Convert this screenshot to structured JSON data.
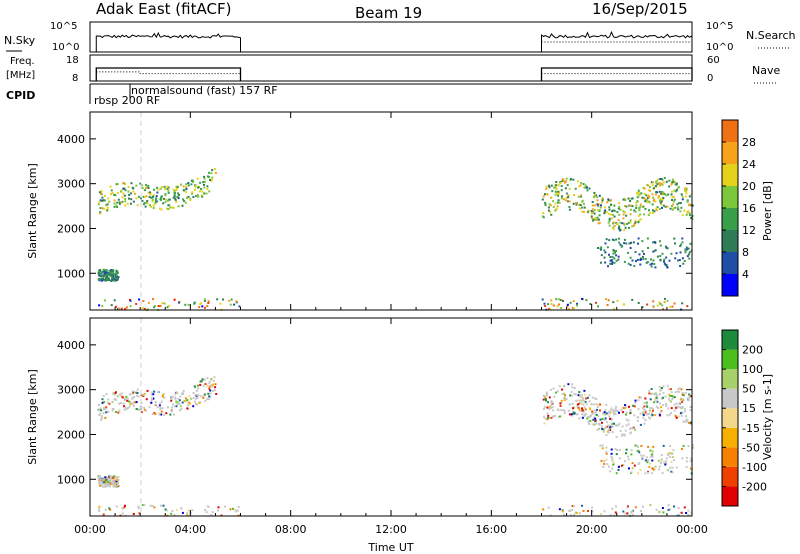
{
  "header": {
    "station": "Adak East (fitACF)",
    "beam": "Beam 19",
    "date": "16/Sep/2015"
  },
  "colors": {
    "power": [
      "#0000ff",
      "#1f4ea6",
      "#2e7d57",
      "#3a9f4b",
      "#7bc83c",
      "#e6d21a",
      "#f6a21a",
      "#f07014",
      "#e83a10",
      "#ff0000"
    ],
    "velocity": [
      "#e00000",
      "#f04000",
      "#f68000",
      "#f7b000",
      "#f3d78a",
      "#c8c8c8",
      "#a7d26a",
      "#4cbf1f",
      "#1e8a3c",
      "#1c5fa0",
      "#0000cc"
    ],
    "ground_scatter": "#c8c8c8"
  },
  "chart_data": [
    {
      "type": "line",
      "panel": "noise",
      "labels": {
        "left": "N.Sky",
        "right": "N.Search"
      },
      "left_ticks": [
        "10^5",
        "10^0"
      ],
      "right_ticks": [
        "10^5",
        "10^0"
      ],
      "gaps": [
        [
          6.0,
          18.0
        ]
      ],
      "series": [
        {
          "name": "N.Sky",
          "style": "solid",
          "segments": [
            [
              0.25,
              6.0
            ],
            [
              18.0,
              24.0
            ]
          ]
        },
        {
          "name": "N.Search",
          "style": "dotted",
          "segments": [
            [
              18.0,
              24.0
            ]
          ]
        }
      ]
    },
    {
      "type": "line",
      "panel": "frequency",
      "labels": {
        "left_top": "Freq.",
        "left_bottom": "[MHz]",
        "right": "Nave"
      },
      "left_ticks": [
        "18",
        "8"
      ],
      "right_ticks": [
        "60",
        "0"
      ],
      "ylim_left": [
        8,
        18
      ],
      "ylim_right": [
        0,
        60
      ],
      "series": [
        {
          "name": "Freq.",
          "style": "solid",
          "points": [
            [
              0.25,
              13.0
            ],
            [
              6.0,
              13.0
            ]
          ]
        },
        {
          "name": "Freq.",
          "style": "solid",
          "points": [
            [
              18.0,
              13.0
            ],
            [
              24.0,
              13.0
            ]
          ]
        },
        {
          "name": "Nave",
          "style": "dotted",
          "points": [
            [
              0.25,
              21
            ],
            [
              2.0,
              21
            ],
            [
              2.0,
              17
            ],
            [
              6.0,
              17
            ]
          ]
        },
        {
          "name": "Nave",
          "style": "dotted",
          "points": [
            [
              18.0,
              17
            ],
            [
              24.0,
              17
            ]
          ]
        }
      ]
    },
    {
      "type": "table",
      "panel": "cpid",
      "label": "CPID",
      "entries": [
        {
          "text": "rbsp 200 RF",
          "start": 0.25
        },
        {
          "text": "normalsound (fast) 157 RF",
          "start": 2.0
        }
      ]
    },
    {
      "type": "heatmap",
      "panel": "power",
      "ylabel": "Slant Range [km]",
      "yticks": [
        1000,
        2000,
        3000,
        4000
      ],
      "ylim": [
        180,
        4600
      ],
      "xlim": [
        0,
        24
      ],
      "colorbar": {
        "label": "Power [dB]",
        "ticks": [
          4,
          8,
          12,
          16,
          20,
          24,
          28
        ],
        "range": [
          0,
          32
        ]
      },
      "regions": [
        {
          "x": [
            0.3,
            5.0
          ],
          "y": [
            2100,
            3050
          ],
          "level": [
            6,
            20
          ]
        },
        {
          "x": [
            0.3,
            1.1
          ],
          "y": [
            850,
            1100
          ],
          "level": [
            5,
            12
          ]
        },
        {
          "x": [
            0.3,
            6.0
          ],
          "y": [
            200,
            450
          ],
          "level": [
            2,
            30
          ]
        },
        {
          "x": [
            18.0,
            24.0
          ],
          "y": [
            1900,
            3200
          ],
          "level": [
            6,
            22
          ]
        },
        {
          "x": [
            20.2,
            24.0
          ],
          "y": [
            1150,
            1800
          ],
          "level": [
            3,
            12
          ]
        },
        {
          "x": [
            18.0,
            24.0
          ],
          "y": [
            200,
            450
          ],
          "level": [
            2,
            30
          ]
        }
      ]
    },
    {
      "type": "heatmap",
      "panel": "velocity",
      "ylabel": "Slant Range [km]",
      "yticks": [
        1000,
        2000,
        3000,
        4000
      ],
      "ylim": [
        180,
        4600
      ],
      "xlim": [
        0,
        24
      ],
      "xticks": [
        "00:00",
        "04:00",
        "08:00",
        "12:00",
        "16:00",
        "20:00",
        "00:00"
      ],
      "xlabel": "Time UT",
      "colorbar": {
        "label": "Velocity [m s-1]",
        "ticks": [
          -200,
          -100,
          -50,
          -15,
          15,
          50,
          100,
          200
        ]
      },
      "regions": [
        {
          "x": [
            0.3,
            5.0
          ],
          "y": [
            2100,
            3050
          ],
          "velocity": [
            -60,
            60
          ]
        },
        {
          "x": [
            0.3,
            1.1
          ],
          "y": [
            850,
            1100
          ],
          "velocity": [
            -20,
            20
          ]
        },
        {
          "x": [
            0.3,
            6.0
          ],
          "y": [
            200,
            450
          ],
          "velocity": [
            -100,
            100
          ]
        },
        {
          "x": [
            18.0,
            24.0
          ],
          "y": [
            1900,
            3200
          ],
          "velocity": [
            -60,
            60
          ]
        },
        {
          "x": [
            20.2,
            24.0
          ],
          "y": [
            1150,
            1800
          ],
          "velocity": [
            -200,
            200
          ]
        },
        {
          "x": [
            18.0,
            24.0
          ],
          "y": [
            200,
            450
          ],
          "velocity": [
            -100,
            100
          ]
        }
      ]
    }
  ]
}
